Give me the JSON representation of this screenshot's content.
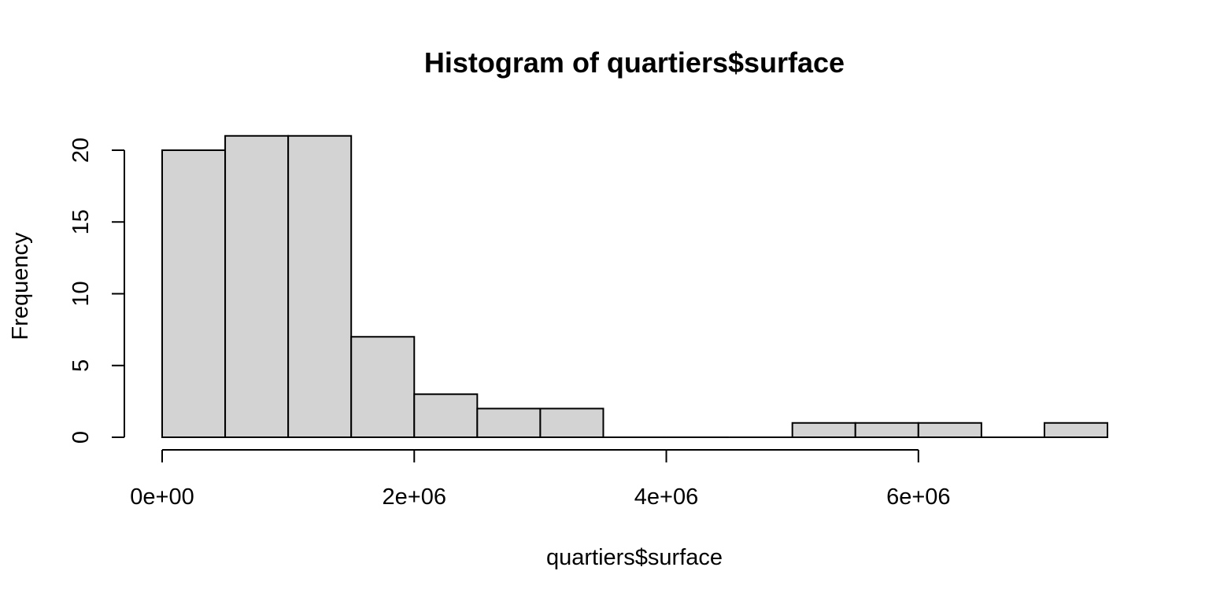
{
  "chart_data": {
    "type": "bar",
    "title": "Histogram of quartiers$surface",
    "xlabel": "quartiers$surface",
    "ylabel": "Frequency",
    "bins": [
      {
        "from": 0,
        "to": 500000,
        "count": 20
      },
      {
        "from": 500000,
        "to": 1000000,
        "count": 21
      },
      {
        "from": 1000000,
        "to": 1500000,
        "count": 21
      },
      {
        "from": 1500000,
        "to": 2000000,
        "count": 7
      },
      {
        "from": 2000000,
        "to": 2500000,
        "count": 3
      },
      {
        "from": 2500000,
        "to": 3000000,
        "count": 2
      },
      {
        "from": 3000000,
        "to": 3500000,
        "count": 2
      },
      {
        "from": 3500000,
        "to": 4000000,
        "count": 0
      },
      {
        "from": 4000000,
        "to": 4500000,
        "count": 0
      },
      {
        "from": 4500000,
        "to": 5000000,
        "count": 0
      },
      {
        "from": 5000000,
        "to": 5500000,
        "count": 1
      },
      {
        "from": 5500000,
        "to": 6000000,
        "count": 1
      },
      {
        "from": 6000000,
        "to": 6500000,
        "count": 1
      },
      {
        "from": 6500000,
        "to": 7000000,
        "count": 0
      },
      {
        "from": 7000000,
        "to": 7500000,
        "count": 1
      }
    ],
    "xlim": [
      0,
      7500000
    ],
    "ylim": [
      0,
      21
    ],
    "x_axis_range": [
      0,
      6000000
    ],
    "y_axis_range": [
      0,
      20
    ],
    "x_ticks": [
      {
        "value": 0,
        "label": "0e+00"
      },
      {
        "value": 2000000,
        "label": "2e+06"
      },
      {
        "value": 4000000,
        "label": "4e+06"
      },
      {
        "value": 6000000,
        "label": "6e+06"
      }
    ],
    "y_ticks": [
      {
        "value": 0,
        "label": "0"
      },
      {
        "value": 5,
        "label": "5"
      },
      {
        "value": 10,
        "label": "10"
      },
      {
        "value": 15,
        "label": "15"
      },
      {
        "value": 20,
        "label": "20"
      }
    ],
    "bar_fill": "#d3d3d3",
    "bar_stroke": "#000000",
    "grid": false
  }
}
